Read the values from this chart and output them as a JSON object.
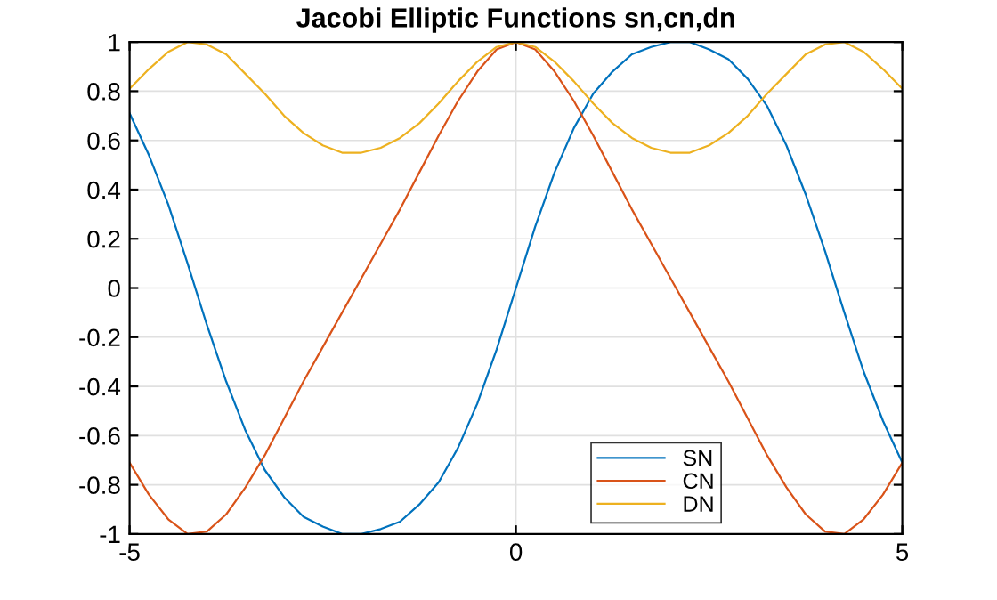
{
  "chart_data": {
    "type": "line",
    "title": "Jacobi Elliptic Functions sn,cn,dn",
    "x": [
      -5,
      -4.75,
      -4.5,
      -4.25,
      -4,
      -3.75,
      -3.5,
      -3.25,
      -3,
      -2.75,
      -2.5,
      -2.25,
      -2,
      -1.75,
      -1.5,
      -1.25,
      -1,
      -0.75,
      -0.5,
      -0.25,
      0,
      0.25,
      0.5,
      0.75,
      1,
      1.25,
      1.5,
      1.75,
      2,
      2.25,
      2.5,
      2.75,
      3,
      3.25,
      3.5,
      3.75,
      4,
      4.25,
      4.5,
      4.75,
      5
    ],
    "series": [
      {
        "name": "SN",
        "color": "#0072bd",
        "values": [
          0.71,
          0.54,
          0.34,
          0.1,
          -0.15,
          -0.38,
          -0.58,
          -0.74,
          -0.85,
          -0.93,
          -0.97,
          -1.0,
          -1.0,
          -0.98,
          -0.95,
          -0.88,
          -0.79,
          -0.65,
          -0.47,
          -0.25,
          0,
          0.25,
          0.47,
          0.65,
          0.79,
          0.88,
          0.95,
          0.98,
          1.0,
          1.0,
          0.97,
          0.93,
          0.85,
          0.74,
          0.58,
          0.38,
          0.15,
          -0.1,
          -0.34,
          -0.54,
          -0.71
        ]
      },
      {
        "name": "CN",
        "color": "#d95319",
        "values": [
          -0.71,
          -0.84,
          -0.94,
          -1.0,
          -0.99,
          -0.92,
          -0.81,
          -0.68,
          -0.53,
          -0.38,
          -0.24,
          -0.1,
          0.04,
          0.18,
          0.32,
          0.47,
          0.62,
          0.76,
          0.88,
          0.97,
          1.0,
          0.97,
          0.88,
          0.76,
          0.62,
          0.47,
          0.32,
          0.18,
          0.04,
          -0.1,
          -0.24,
          -0.38,
          -0.53,
          -0.68,
          -0.81,
          -0.92,
          -0.99,
          -1.0,
          -0.94,
          -0.84,
          -0.71
        ]
      },
      {
        "name": "DN",
        "color": "#edb120",
        "values": [
          0.81,
          0.89,
          0.96,
          1.0,
          0.99,
          0.95,
          0.87,
          0.79,
          0.7,
          0.63,
          0.58,
          0.55,
          0.55,
          0.57,
          0.61,
          0.67,
          0.75,
          0.84,
          0.92,
          0.98,
          1.0,
          0.98,
          0.92,
          0.84,
          0.75,
          0.67,
          0.61,
          0.57,
          0.55,
          0.55,
          0.58,
          0.63,
          0.7,
          0.79,
          0.87,
          0.95,
          0.99,
          1.0,
          0.96,
          0.89,
          0.81
        ]
      }
    ],
    "xlim": [
      -5,
      5
    ],
    "xticks": [
      -5,
      0,
      5
    ],
    "ylim": [
      -1,
      1
    ],
    "yticks": [
      -1,
      -0.8,
      -0.6,
      -0.4,
      -0.2,
      0,
      0.2,
      0.4,
      0.6,
      0.8,
      1
    ],
    "grid": true,
    "legend": "lower right",
    "marker": "none",
    "line_style": "solid"
  }
}
